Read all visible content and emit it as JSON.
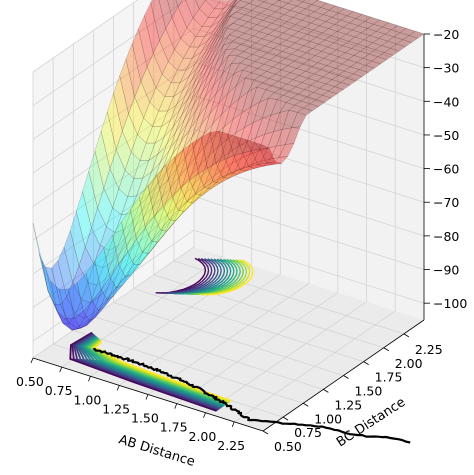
{
  "chart_data": {
    "type": "surface3d",
    "title": "",
    "xlabel": "AB Distance",
    "ylabel": "BC Distance",
    "zlabel": "",
    "xlim": [
      0.5,
      2.5
    ],
    "ylim": [
      0.5,
      2.5
    ],
    "zlim": [
      -105,
      -20
    ],
    "x_ticks": [
      "0.50",
      "0.75",
      "1.00",
      "1.25",
      "1.50",
      "1.75",
      "2.00",
      "2.25"
    ],
    "y_ticks": [
      "0.50",
      "0.75",
      "1.00",
      "1.25",
      "1.50",
      "1.75",
      "2.00",
      "2.25"
    ],
    "z_ticks": [
      "-20",
      "-30",
      "-40",
      "-50",
      "-60",
      "-70",
      "-80",
      "-90",
      "-100"
    ],
    "grid": true,
    "colormap_surface": "jet",
    "colormap_contour": "viridis",
    "surface_alpha": 0.35,
    "trajectory_color": "#000000"
  }
}
